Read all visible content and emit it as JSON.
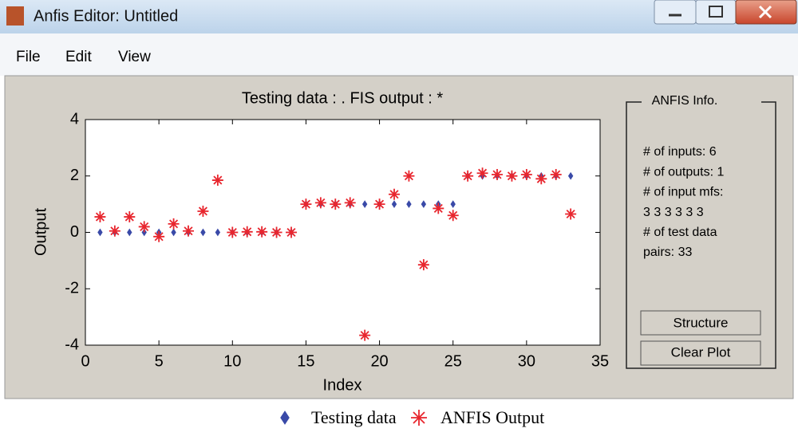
{
  "window": {
    "title": "Anfis Editor: Untitled"
  },
  "menu": [
    "File",
    "Edit",
    "View"
  ],
  "chart_data": {
    "type": "scatter",
    "title": "Testing data : .   FIS output : *",
    "xlabel": "Index",
    "ylabel": "Output",
    "x": [
      1,
      2,
      3,
      4,
      5,
      6,
      7,
      8,
      9,
      10,
      11,
      12,
      13,
      14,
      15,
      16,
      17,
      18,
      19,
      20,
      21,
      22,
      23,
      24,
      25,
      26,
      27,
      28,
      29,
      30,
      31,
      32,
      33
    ],
    "series": [
      {
        "name": "Testing data",
        "color": "#3a4aa8",
        "marker": "diamond",
        "values": [
          0,
          0,
          0,
          0,
          0,
          0,
          0,
          0,
          0,
          0,
          0,
          0,
          0,
          0,
          1,
          1,
          1,
          1,
          1,
          1,
          1,
          1,
          1,
          1,
          1,
          2,
          2,
          2,
          2,
          2,
          2,
          2,
          2
        ]
      },
      {
        "name": "ANFIS Output",
        "color": "#e8262e",
        "marker": "star",
        "values": [
          0.55,
          0.05,
          0.55,
          0.2,
          -0.15,
          0.3,
          0.05,
          0.75,
          1.85,
          0,
          0.02,
          0.02,
          0,
          0,
          1,
          1.05,
          1,
          1.05,
          -3.65,
          1,
          1.35,
          2.0,
          -1.15,
          0.85,
          0.6,
          2.0,
          2.1,
          2.05,
          2.0,
          2.05,
          1.9,
          2.05,
          0.65
        ]
      }
    ],
    "xlim": [
      0,
      35
    ],
    "xticks": [
      0,
      5,
      10,
      15,
      20,
      25,
      30,
      35
    ],
    "ylim": [
      -4,
      4
    ],
    "yticks": [
      -4,
      -2,
      0,
      2,
      4
    ],
    "legend": "bottom"
  },
  "info": {
    "title": "ANFIS Info.",
    "lines": [
      "# of inputs: 6",
      "# of outputs: 1",
      "# of input mfs:",
      "3  3  3  3  3  3",
      "# of test data",
      "pairs: 33"
    ]
  },
  "buttons": [
    "Structure",
    "Clear Plot"
  ]
}
